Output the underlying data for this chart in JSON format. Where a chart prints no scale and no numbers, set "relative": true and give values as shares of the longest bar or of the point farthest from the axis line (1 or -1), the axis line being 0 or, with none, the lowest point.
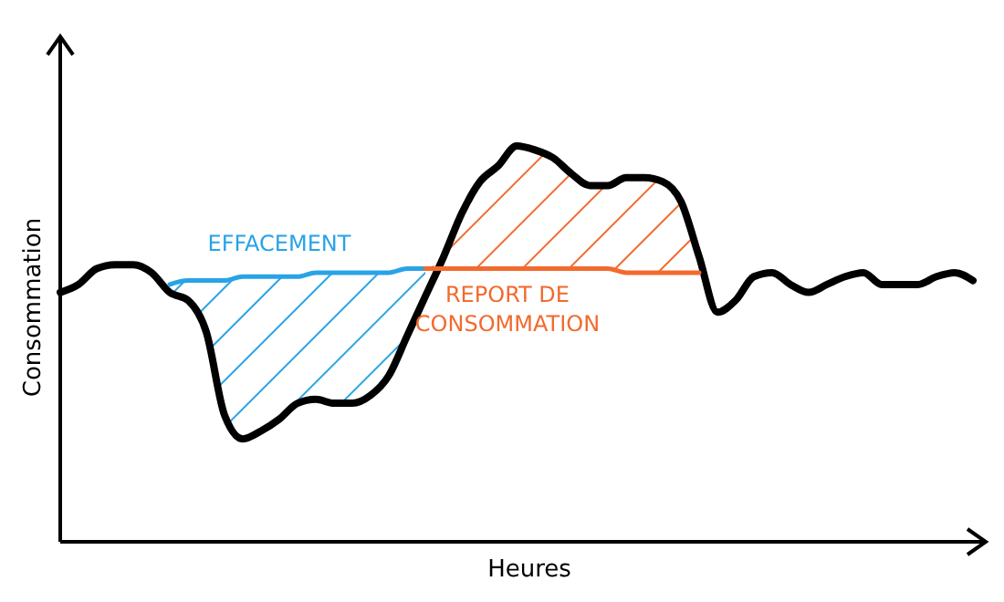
{
  "chart_data": {
    "type": "line",
    "relative": true,
    "xlabel": "Heures",
    "ylabel": "Consommation",
    "categories": [
      null,
      null,
      null,
      null,
      null,
      null,
      null,
      null,
      null,
      null,
      null,
      null,
      null,
      null,
      null,
      null,
      null,
      null,
      null,
      null,
      null,
      null,
      null,
      null,
      null,
      null,
      null,
      null,
      null,
      null,
      null,
      null,
      null,
      null,
      null,
      null,
      null,
      null,
      null,
      null,
      null,
      null,
      null,
      null,
      null,
      null,
      null,
      null,
      null,
      null,
      null
    ],
    "series": [
      {
        "color": "#000000",
        "values": [
          0.63,
          0.65,
          0.69,
          0.7,
          0.7,
          0.68,
          0.63,
          0.61,
          0.53,
          0.32,
          0.26,
          0.28,
          0.31,
          0.35,
          0.36,
          0.35,
          0.35,
          0.37,
          0.42,
          0.52,
          0.62,
          0.72,
          0.83,
          0.91,
          0.95,
          1.0,
          0.99,
          0.97,
          0.93,
          0.9,
          0.9,
          0.92,
          0.92,
          0.91,
          0.86,
          0.72,
          0.58,
          0.61,
          0.67,
          0.68,
          0.65,
          0.63,
          0.65,
          0.67,
          0.68,
          0.65,
          0.65,
          0.65,
          0.67,
          0.68,
          0.66
        ]
      },
      {
        "color": "#29a3e6",
        "values": [
          null,
          null,
          null,
          null,
          null,
          null,
          0.65,
          0.66,
          0.66,
          0.66,
          0.67,
          0.67,
          0.67,
          0.67,
          0.68,
          0.68,
          0.68,
          0.68,
          0.68,
          0.69,
          0.69,
          null,
          null,
          null,
          null,
          null,
          null,
          null,
          null,
          null,
          null,
          null,
          null,
          null,
          null,
          null,
          null,
          null,
          null,
          null,
          null,
          null,
          null,
          null,
          null,
          null,
          null,
          null,
          null,
          null,
          null
        ],
        "lower": [
          null,
          null,
          null,
          null,
          null,
          null,
          0.63,
          0.61,
          0.53,
          0.32,
          0.26,
          0.28,
          0.31,
          0.35,
          0.36,
          0.35,
          0.35,
          0.37,
          0.42,
          0.52,
          0.62,
          null,
          null,
          null,
          null,
          null,
          null,
          null,
          null,
          null,
          null,
          null,
          null,
          null,
          null,
          null,
          null,
          null,
          null,
          null,
          null,
          null,
          null,
          null,
          null,
          null,
          null,
          null,
          null,
          null,
          null
        ],
        "upper": [
          null,
          null,
          null,
          null,
          null,
          null,
          0.65,
          0.66,
          0.66,
          0.66,
          0.67,
          0.67,
          0.67,
          0.67,
          0.68,
          0.68,
          0.68,
          0.68,
          0.68,
          0.69,
          0.69,
          null,
          null,
          null,
          null,
          null,
          null,
          null,
          null,
          null,
          null,
          null,
          null,
          null,
          null,
          null,
          null,
          null,
          null,
          null,
          null,
          null,
          null,
          null,
          null,
          null,
          null,
          null,
          null,
          null,
          null
        ]
      },
      {
        "color": "#f26a2e",
        "values": [
          null,
          null,
          null,
          null,
          null,
          null,
          null,
          null,
          null,
          null,
          null,
          null,
          null,
          null,
          null,
          null,
          null,
          null,
          null,
          null,
          0.69,
          0.69,
          0.69,
          0.69,
          0.69,
          0.69,
          0.69,
          0.69,
          0.69,
          0.69,
          0.69,
          0.68,
          0.68,
          0.68,
          0.68,
          0.68,
          null,
          null,
          null,
          null,
          null,
          null,
          null,
          null,
          null,
          null,
          null,
          null,
          null,
          null,
          null
        ],
        "lower": [
          null,
          null,
          null,
          null,
          null,
          null,
          null,
          null,
          null,
          null,
          null,
          null,
          null,
          null,
          null,
          null,
          null,
          null,
          null,
          null,
          0.69,
          0.69,
          0.69,
          0.69,
          0.69,
          0.69,
          0.69,
          0.69,
          0.69,
          0.69,
          0.69,
          0.68,
          0.68,
          0.68,
          0.68,
          0.68,
          null,
          null,
          null,
          null,
          null,
          null,
          null,
          null,
          null,
          null,
          null,
          null,
          null,
          null,
          null
        ],
        "upper": [
          null,
          null,
          null,
          null,
          null,
          null,
          null,
          null,
          null,
          null,
          null,
          null,
          null,
          null,
          null,
          null,
          null,
          null,
          null,
          null,
          0.69,
          0.72,
          0.83,
          0.91,
          0.95,
          1.0,
          0.99,
          0.97,
          0.93,
          0.9,
          0.9,
          0.92,
          0.92,
          0.91,
          0.86,
          0.72,
          null,
          null,
          null,
          null,
          null,
          null,
          null,
          null,
          null,
          null,
          null,
          null,
          null,
          null,
          null
        ]
      }
    ],
    "annotations": [
      "EFFACEMENT",
      "REPORT DE CONSOMMATION"
    ]
  }
}
